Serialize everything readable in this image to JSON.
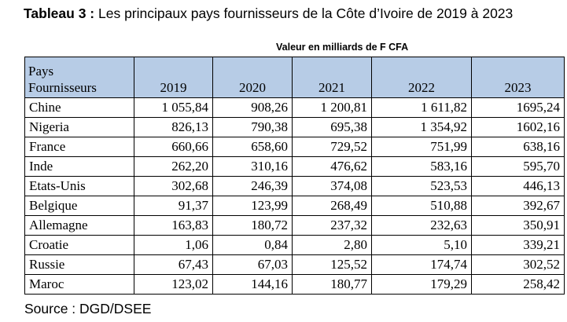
{
  "title": {
    "prefix": "Tableau 3 :",
    "text": "Les principaux pays fournisseurs de la Côte d’Ivoire de 2019 à 2023"
  },
  "unit_note": "Valeur en milliards de F CFA",
  "table": {
    "header_country_line1": "Pays",
    "header_country_line2": "Fournisseurs",
    "years": [
      "2019",
      "2020",
      "2021",
      "2022",
      "2023"
    ],
    "rows": [
      {
        "country": "Chine",
        "values": [
          "1 055,84",
          "908,26",
          "1 200,81",
          "1 611,82",
          "1695,24"
        ]
      },
      {
        "country": "Nigeria",
        "values": [
          "826,13",
          "790,38",
          "695,38",
          "1 354,92",
          "1602,16"
        ]
      },
      {
        "country": "France",
        "values": [
          "660,66",
          "658,60",
          "729,52",
          "751,99",
          "638,16"
        ]
      },
      {
        "country": "Inde",
        "values": [
          "262,20",
          "310,16",
          "476,62",
          "583,16",
          "595,70"
        ]
      },
      {
        "country": "Etats-Unis",
        "values": [
          "302,68",
          "246,39",
          "374,08",
          "523,53",
          "446,13"
        ]
      },
      {
        "country": "Belgique",
        "values": [
          "91,37",
          "123,99",
          "268,49",
          "510,88",
          "392,67"
        ]
      },
      {
        "country": "Allemagne",
        "values": [
          "163,83",
          "180,72",
          "237,32",
          "232,63",
          "350,91"
        ]
      },
      {
        "country": "Croatie",
        "values": [
          "1,06",
          "0,84",
          "2,80",
          "5,10",
          "339,21"
        ]
      },
      {
        "country": "Russie",
        "values": [
          "67,43",
          "67,03",
          "125,52",
          "174,74",
          "302,52"
        ]
      },
      {
        "country": "Maroc",
        "values": [
          "123,02",
          "144,16",
          "180,77",
          "179,29",
          "258,42"
        ]
      }
    ]
  },
  "source": "Source : DGD/DSEE",
  "colors": {
    "header_bg": "#b7cce6"
  }
}
